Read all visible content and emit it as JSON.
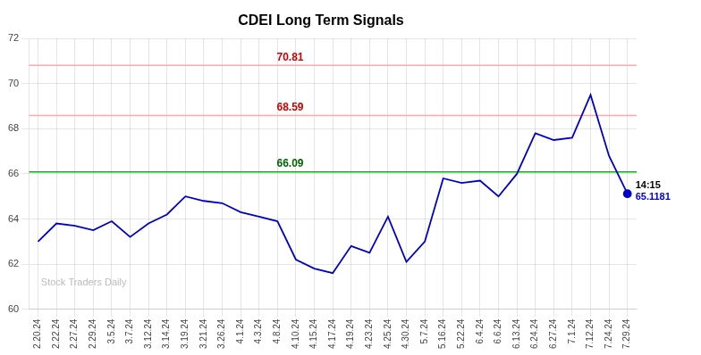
{
  "chart_data": {
    "type": "line",
    "title": "CDEI Long Term Signals",
    "categories": [
      "2.20.24",
      "2.22.24",
      "2.27.24",
      "2.29.24",
      "3.5.24",
      "3.7.24",
      "3.12.24",
      "3.14.24",
      "3.19.24",
      "3.21.24",
      "3.26.24",
      "4.1.24",
      "4.3.24",
      "4.8.24",
      "4.10.24",
      "4.15.24",
      "4.17.24",
      "4.19.24",
      "4.23.24",
      "4.25.24",
      "4.30.24",
      "5.7.24",
      "5.16.24",
      "5.22.24",
      "6.4.24",
      "6.6.24",
      "6.13.24",
      "6.24.24",
      "6.27.24",
      "7.1.24",
      "7.12.24",
      "7.24.24",
      "7.29.24"
    ],
    "values": [
      63.0,
      63.8,
      63.7,
      63.5,
      63.9,
      63.2,
      63.8,
      64.2,
      65.0,
      64.8,
      64.7,
      64.3,
      64.1,
      63.9,
      62.2,
      61.8,
      61.6,
      62.8,
      62.5,
      64.1,
      62.1,
      63.0,
      65.8,
      65.6,
      65.7,
      65.0,
      66.0,
      67.8,
      67.5,
      67.6,
      69.5,
      66.8,
      65.1181
    ],
    "color": "#0000cc",
    "ylim": [
      60,
      72
    ],
    "yticks": [
      60,
      62,
      64,
      66,
      68,
      70,
      72
    ],
    "grid": true,
    "hlines": [
      {
        "value": 70.81,
        "label": "70.81",
        "color": "#ffaaaa",
        "label_color": "#cc0000"
      },
      {
        "value": 68.59,
        "label": "68.59",
        "color": "#ffaaaa",
        "label_color": "#cc0000"
      },
      {
        "value": 66.09,
        "label": "66.09",
        "color": "#00bb00",
        "label_color": "#006600"
      }
    ],
    "annotations": [
      {
        "text": "14:15",
        "color": "#000000"
      },
      {
        "text": "65.1181",
        "color": "#0000cc"
      }
    ],
    "watermark": "Stock Traders Daily"
  }
}
